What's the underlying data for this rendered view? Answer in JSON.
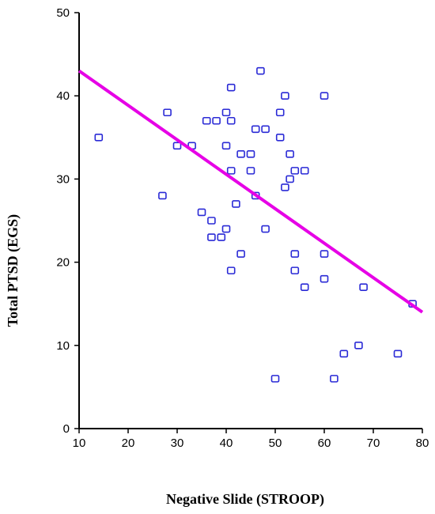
{
  "chart_data": {
    "type": "scatter",
    "xlabel": "Negative Slide (STROOP)",
    "ylabel": "Total PTSD (EGS)",
    "xlim": [
      10,
      80
    ],
    "ylim": [
      0,
      50
    ],
    "xticks": [
      10,
      20,
      30,
      40,
      50,
      60,
      70,
      80
    ],
    "yticks": [
      0,
      10,
      20,
      30,
      40,
      50
    ],
    "grid": false,
    "marker_color": "#2a2ad6",
    "fit_line_color": "#e600e6",
    "points": [
      {
        "x": 14,
        "y": 35
      },
      {
        "x": 27,
        "y": 28
      },
      {
        "x": 28,
        "y": 38
      },
      {
        "x": 30,
        "y": 34
      },
      {
        "x": 33,
        "y": 34
      },
      {
        "x": 35,
        "y": 26
      },
      {
        "x": 36,
        "y": 37
      },
      {
        "x": 37,
        "y": 25
      },
      {
        "x": 37,
        "y": 23
      },
      {
        "x": 38,
        "y": 37
      },
      {
        "x": 39,
        "y": 23
      },
      {
        "x": 40,
        "y": 38
      },
      {
        "x": 40,
        "y": 34
      },
      {
        "x": 40,
        "y": 24
      },
      {
        "x": 41,
        "y": 41
      },
      {
        "x": 41,
        "y": 37
      },
      {
        "x": 41,
        "y": 31
      },
      {
        "x": 41,
        "y": 19
      },
      {
        "x": 42,
        "y": 27
      },
      {
        "x": 43,
        "y": 33
      },
      {
        "x": 43,
        "y": 21
      },
      {
        "x": 45,
        "y": 33
      },
      {
        "x": 45,
        "y": 31
      },
      {
        "x": 46,
        "y": 36
      },
      {
        "x": 46,
        "y": 28
      },
      {
        "x": 47,
        "y": 43
      },
      {
        "x": 48,
        "y": 36
      },
      {
        "x": 48,
        "y": 24
      },
      {
        "x": 50,
        "y": 6
      },
      {
        "x": 51,
        "y": 38
      },
      {
        "x": 51,
        "y": 35
      },
      {
        "x": 52,
        "y": 40
      },
      {
        "x": 52,
        "y": 29
      },
      {
        "x": 53,
        "y": 33
      },
      {
        "x": 53,
        "y": 30
      },
      {
        "x": 54,
        "y": 31
      },
      {
        "x": 54,
        "y": 21
      },
      {
        "x": 54,
        "y": 19
      },
      {
        "x": 56,
        "y": 31
      },
      {
        "x": 56,
        "y": 17
      },
      {
        "x": 60,
        "y": 40
      },
      {
        "x": 60,
        "y": 21
      },
      {
        "x": 60,
        "y": 18
      },
      {
        "x": 62,
        "y": 6
      },
      {
        "x": 64,
        "y": 9
      },
      {
        "x": 67,
        "y": 10
      },
      {
        "x": 68,
        "y": 17
      },
      {
        "x": 75,
        "y": 9
      },
      {
        "x": 78,
        "y": 15
      }
    ],
    "fit_line": {
      "x": [
        10,
        80
      ],
      "y": [
        43,
        14
      ]
    }
  }
}
